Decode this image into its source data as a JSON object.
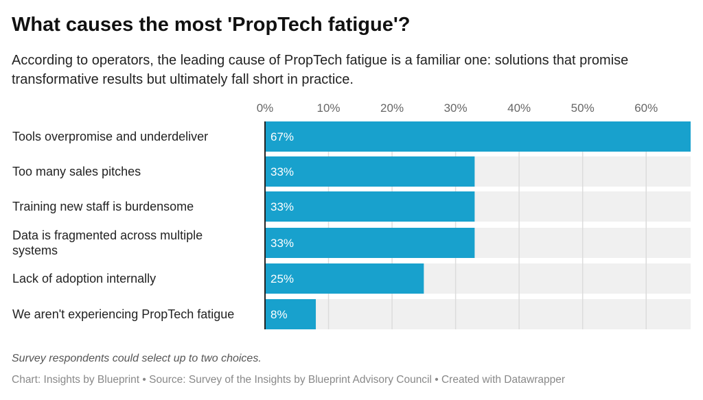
{
  "title": "What causes the most 'PropTech fatigue'?",
  "subtitle": "According to operators, the leading cause of PropTech fatigue is a familiar one: solutions that promise transformative results but ultimately fall short in practice.",
  "note": "Survey respondents could select up to two choices.",
  "credit": "Chart: Insights by Blueprint • Source: Survey of the Insights by Blueprint Advisory Council • Created with Datawrapper",
  "colors": {
    "bar": "#18a1cd",
    "track": "#f0f0f0",
    "grid": "#dcdcdc"
  },
  "chart_data": {
    "type": "bar",
    "orientation": "horizontal",
    "categories": [
      "Tools overpromise and underdeliver",
      "Too many sales pitches",
      "Training new staff is burdensome",
      "Data is fragmented across multiple systems",
      "Lack of adoption internally",
      "We aren't experiencing PropTech fatigue"
    ],
    "values": [
      67,
      33,
      33,
      33,
      25,
      8
    ],
    "value_labels": [
      "67%",
      "33%",
      "33%",
      "33%",
      "25%",
      "8%"
    ],
    "xlim": [
      0,
      67
    ],
    "ticks": [
      0,
      10,
      20,
      30,
      40,
      50,
      60
    ],
    "tick_labels": [
      "0%",
      "10%",
      "20%",
      "30%",
      "40%",
      "50%",
      "60%"
    ],
    "grid": true
  }
}
